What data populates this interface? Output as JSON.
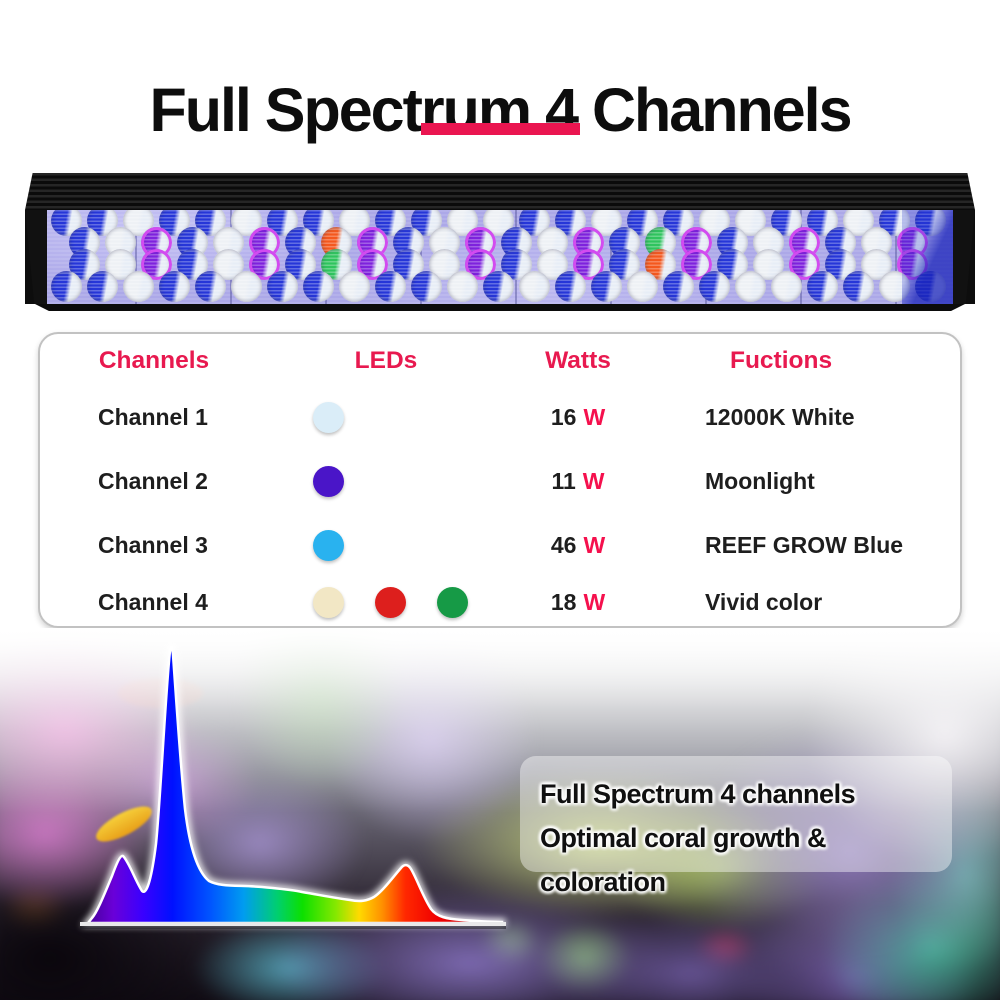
{
  "title": "Full Spectrum 4 Channels",
  "accent_color": "#ea1550",
  "spec_table": {
    "headers": [
      "Channels",
      "LEDs",
      "Watts",
      "Fuctions"
    ],
    "rows": [
      {
        "channel": "Channel 1",
        "led_colors": [
          "#daedf8"
        ],
        "watts": "16",
        "watt_unit": "W",
        "function": "12000K White"
      },
      {
        "channel": "Channel 2",
        "led_colors": [
          "#4a15c8"
        ],
        "watts": "11",
        "watt_unit": "W",
        "function": "Moonlight"
      },
      {
        "channel": "Channel 3",
        "led_colors": [
          "#29b2ef"
        ],
        "watts": "46",
        "watt_unit": "W",
        "function": "REEF GROW Blue"
      },
      {
        "channel": "Channel 4",
        "led_colors": [
          "#f2e7c5",
          "#dd1f1d",
          "#169a46"
        ],
        "watts": "18",
        "watt_unit": "W",
        "function": "Vivid color"
      }
    ]
  },
  "caption": {
    "line1": "Full Spectrum 4 channels",
    "line2": "Optimal coral growth & coloration"
  },
  "light_bar": {
    "rows": [
      "BBWBBWBBWBBWWBBWBBWWBBWBB",
      "BWPBWPBRPBWPBWPBGPBWPBWP",
      "BWPBWPBGPBWPBWPBRPBWPBWP",
      "BBWBBWBBWBBWBWBBWBBWWBBWB"
    ],
    "colors": {
      "B": {
        "name": "blue",
        "hex": "#2636d8"
      },
      "W": {
        "name": "white",
        "hex": "#eef1f5"
      },
      "P": {
        "name": "purple",
        "hex": "#7e22dd"
      },
      "R": {
        "name": "red",
        "hex": "#f4581e"
      },
      "G": {
        "name": "green",
        "hex": "#2fc45e"
      }
    }
  },
  "chart_data": {
    "type": "area",
    "title": "",
    "xlabel": "",
    "ylabel": "",
    "description": "LED emission spectrum overlaid on reef photo; area filled with wavelength rainbow gradient (violet to red) and white glow outline, flat white baseline",
    "series": [
      {
        "name": "spectral output",
        "points": [
          {
            "x_rel": 0.0,
            "y_rel": 0.0
          },
          {
            "x_rel": 0.08,
            "y_rel": 0.24,
            "band": "violet ~420nm"
          },
          {
            "x_rel": 0.13,
            "y_rel": 0.12
          },
          {
            "x_rel": 0.2,
            "y_rel": 1.0,
            "band": "royal blue ~450nm"
          },
          {
            "x_rel": 0.29,
            "y_rel": 0.16
          },
          {
            "x_rel": 0.52,
            "y_rel": 0.12,
            "band": "green plateau"
          },
          {
            "x_rel": 0.68,
            "y_rel": 0.08
          },
          {
            "x_rel": 0.77,
            "y_rel": 0.22,
            "band": "red ~660nm"
          },
          {
            "x_rel": 0.86,
            "y_rel": 0.03
          },
          {
            "x_rel": 1.0,
            "y_rel": 0.01
          }
        ]
      }
    ],
    "legend": "none",
    "grid": false,
    "gradient_order": [
      "violet",
      "blue",
      "cyan",
      "green",
      "yellow",
      "orange",
      "red"
    ]
  }
}
